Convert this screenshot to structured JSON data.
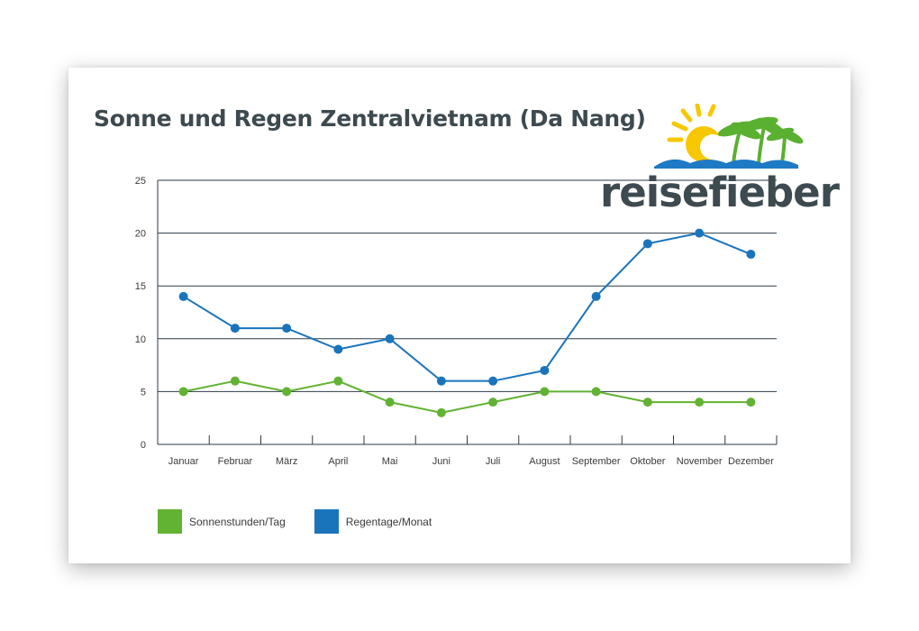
{
  "brand": {
    "logo_text": "reisefieber",
    "colors": {
      "text": "#3d4a50",
      "sun": "#f7c800",
      "palm": "#5ab030",
      "sea": "#1e7ac4"
    }
  },
  "chart_data": {
    "type": "line",
    "title": "Sonne und Regen Zentralvietnam (Da Nang)",
    "categories": [
      "Januar",
      "Februar",
      "März",
      "April",
      "Mai",
      "Juni",
      "Juli",
      "August",
      "September",
      "Oktober",
      "November",
      "Dezember"
    ],
    "series": [
      {
        "name": "Sonnenstunden/Tag",
        "color": "#62b233",
        "values": [
          5,
          6,
          5,
          6,
          4,
          3,
          4,
          5,
          5,
          4,
          4,
          4
        ]
      },
      {
        "name": "Regentage/Monat",
        "color": "#1a74bc",
        "values": [
          14,
          11,
          11,
          9,
          10,
          6,
          6,
          7,
          14,
          19,
          20,
          18
        ]
      }
    ],
    "ylim": [
      0,
      25
    ],
    "yticks": [
      0,
      5,
      10,
      15,
      20,
      25
    ],
    "xlabel": "",
    "ylabel": "",
    "grid": true,
    "legend_position": "bottom-left"
  }
}
